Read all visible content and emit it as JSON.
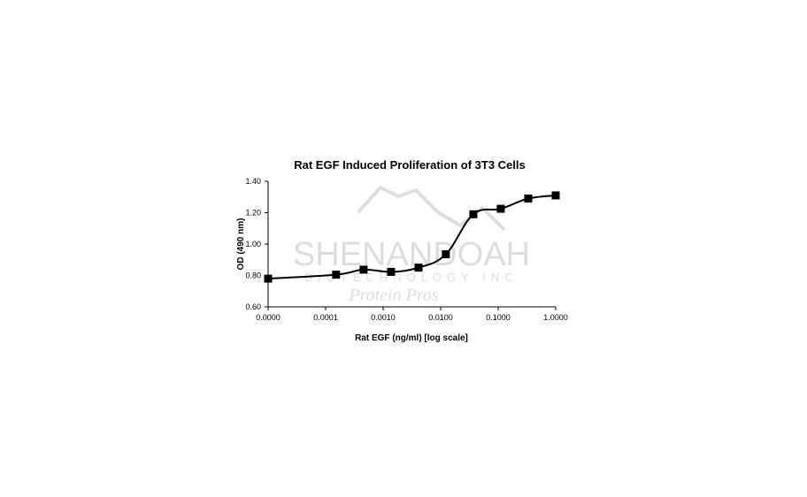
{
  "chart_data": {
    "type": "line",
    "title": "Rat EGF Induced Proliferation of 3T3 Cells",
    "xlabel": "Rat EGF (ng/ml) [log scale]",
    "ylabel": "OD (490 nm)",
    "x_scale": "log",
    "x_tick_labels": [
      "0.0000",
      "0.0001",
      "0.0010",
      "0.0100",
      "0.1000",
      "1.0000"
    ],
    "x_tick_values": [
      1e-05,
      0.0001,
      0.001,
      0.01,
      0.1,
      1
    ],
    "y_tick_labels": [
      "0.60",
      "0.80",
      "1.00",
      "1.20",
      "1.40"
    ],
    "ylim": [
      0.6,
      1.4
    ],
    "grid": false,
    "marker": "square",
    "smooth": true,
    "color": "#000000",
    "x": [
      1e-05,
      0.000152,
      0.000457,
      0.00137,
      0.00412,
      0.0123,
      0.037,
      0.111,
      0.333,
      1.0
    ],
    "y": [
      0.78,
      0.805,
      0.837,
      0.823,
      0.85,
      0.935,
      1.19,
      1.225,
      1.29,
      1.31
    ]
  },
  "watermark": {
    "line1": "SHENANDOAH",
    "line2": "BIOTECHNOLOGY INC",
    "line3": "Protein Pros"
  }
}
